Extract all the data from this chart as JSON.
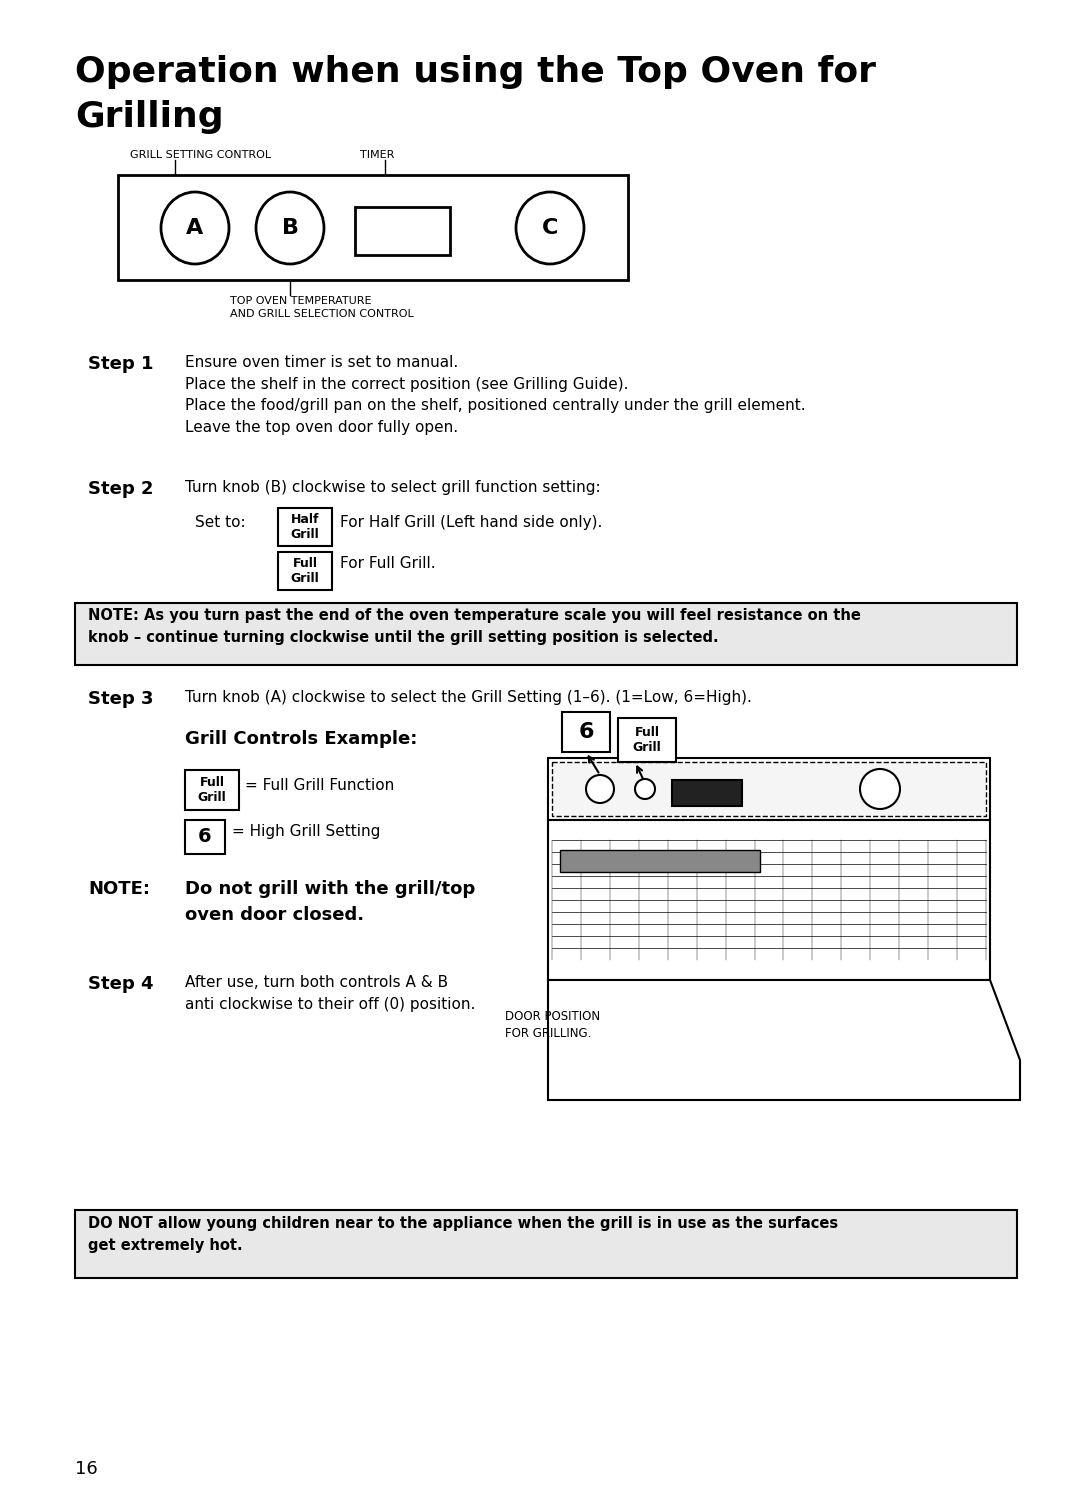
{
  "title_line1": "Operation when using the Top Oven for",
  "title_line2": "Grilling",
  "bg_color": "#ffffff",
  "page_number": "16",
  "note_bg": "#e8e8e8",
  "diagram_label_grill": "GRILL SETTING CONTROL",
  "diagram_label_timer": "TIMER",
  "diagram_label_temp": "TOP OVEN TEMPERATURE\nAND GRILL SELECTION CONTROL",
  "step1_label": "Step 1",
  "step1_text": "Ensure oven timer is set to manual.\nPlace the shelf in the correct position (see Grilling Guide).\nPlace the food/grill pan on the shelf, positioned centrally under the grill element.\nLeave the top oven door fully open.",
  "step2_label": "Step 2",
  "step2_text": "Turn knob (B) clockwise to select grill function setting:",
  "set_to_text": "Set to:",
  "half_grill_text": "For Half Grill (Left hand side only).",
  "full_grill_text": "For Full Grill.",
  "note1_text": "NOTE: As you turn past the end of the oven temperature scale you will feel resistance on the\nknob – continue turning clockwise until the grill setting position is selected.",
  "step3_label": "Step 3",
  "step3_text": "Turn knob (A) clockwise to select the Grill Setting (1–6). (1=Low, 6=High).",
  "grill_controls_title": "Grill Controls Example:",
  "full_grill_function_text": "= Full Grill Function",
  "high_grill_text": "= High Grill Setting",
  "note2_label": "NOTE:",
  "note2_text": "Do not grill with the grill/top\noven door closed.",
  "step4_label": "Step 4",
  "step4_text": "After use, turn both controls A & B\nanti clockwise to their off (0) position.",
  "door_position_text": "DOOR POSITION\nFOR GRILLING.",
  "warning_text": "DO NOT allow young children near to the appliance when the grill is in use as the surfaces\nget extremely hot."
}
